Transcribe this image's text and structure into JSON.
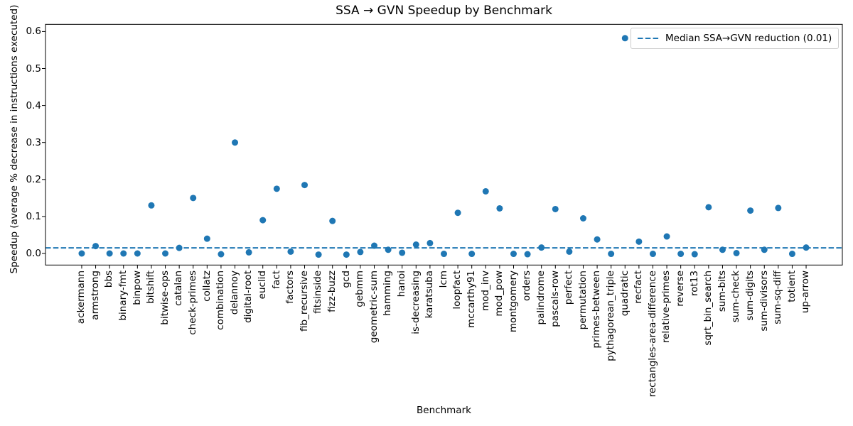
{
  "chart_data": {
    "type": "scatter",
    "title": "SSA → GVN Speedup by Benchmark",
    "xlabel": "Benchmark",
    "ylabel": "Speedup (average % decrease in instructions executed)",
    "categories": [
      "ackermann",
      "armstrong",
      "bbs",
      "binary-fmt",
      "binpow",
      "bitshift",
      "bitwise-ops",
      "catalan",
      "check-primes",
      "collatz",
      "combination",
      "delannoy",
      "digital-root",
      "euclid",
      "fact",
      "factors",
      "fib_recursive",
      "fitsinside",
      "fizz-buzz",
      "gcd",
      "gebmm",
      "geometric-sum",
      "hamming",
      "hanoi",
      "is-decreasing",
      "karatsuba",
      "lcm",
      "loopfact",
      "mccarthy91",
      "mod_inv",
      "mod_pow",
      "montgomery",
      "orders",
      "palindrome",
      "pascals-row",
      "perfect",
      "permutation",
      "primes-between",
      "pythagorean_triple",
      "quadratic",
      "recfact",
      "rectangles-area-difference",
      "relative-primes",
      "reverse",
      "rot13",
      "sqrt_bin_search",
      "sum-bits",
      "sum-check",
      "sum-digits",
      "sum-divisors",
      "sum-sq-diff",
      "totient",
      "up-arrow"
    ],
    "values": [
      0.0,
      0.02,
      0.0,
      0.0,
      0.0,
      0.13,
      0.0,
      0.015,
      0.15,
      0.04,
      -0.002,
      0.3,
      0.003,
      0.09,
      0.175,
      0.005,
      0.185,
      -0.003,
      0.088,
      -0.003,
      0.004,
      0.021,
      0.01,
      0.002,
      0.024,
      0.028,
      -0.001,
      0.11,
      -0.001,
      0.168,
      0.122,
      -0.001,
      -0.002,
      0.016,
      0.12,
      0.005,
      0.095,
      0.038,
      -0.001,
      0.582,
      0.032,
      -0.001,
      0.046,
      -0.001,
      -0.002,
      0.125,
      0.01,
      0.001,
      0.116,
      0.01,
      0.123,
      -0.001,
      0.016
    ],
    "yticks": [
      "0.0",
      "0.1",
      "0.2",
      "0.3",
      "0.4",
      "0.5",
      "0.6"
    ],
    "ytick_values": [
      0.0,
      0.1,
      0.2,
      0.3,
      0.4,
      0.5,
      0.6
    ],
    "ylim": [
      -0.031,
      0.62
    ],
    "grid": false,
    "legend_position": "upper right",
    "point_color": "#1f77b4",
    "median_line": {
      "value": 0.015,
      "style": "dashed",
      "color": "#1f77b4",
      "label": "Median SSA→GVN reduction (0.01)"
    }
  }
}
